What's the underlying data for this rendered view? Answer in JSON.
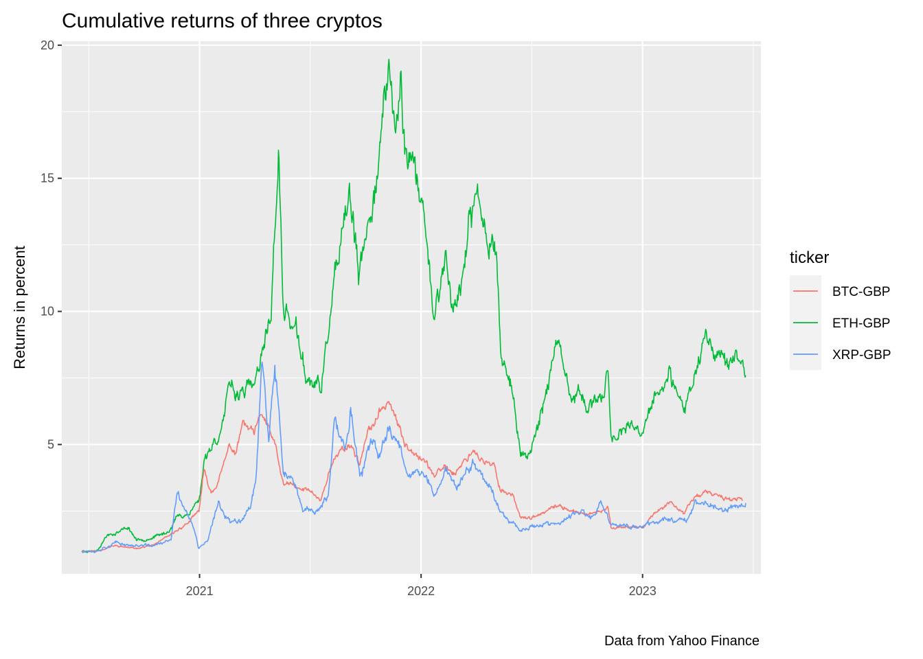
{
  "chart_data": {
    "type": "line",
    "title": "Cumulative returns of three cryptos",
    "xlabel": "",
    "ylabel": "Returns in percent",
    "caption": "Data from Yahoo Finance",
    "xlim": [
      "2020-05-19",
      "2023-07-15"
    ],
    "ylim": [
      0,
      20
    ],
    "x_ticks": [
      {
        "date": "2021-01-01",
        "label": "2021"
      },
      {
        "date": "2022-01-01",
        "label": "2022"
      },
      {
        "date": "2023-01-01",
        "label": "2023"
      }
    ],
    "y_ticks": [
      {
        "value": 5,
        "label": "5"
      },
      {
        "value": 10,
        "label": "10"
      },
      {
        "value": 15,
        "label": "15"
      },
      {
        "value": 20,
        "label": "20"
      }
    ],
    "grid": true,
    "legend": {
      "title": "ticker",
      "position": "right"
    },
    "series": [
      {
        "name": "BTC-GBP",
        "color": "#F8766D",
        "points": [
          [
            "2020-06-21",
            1.0
          ],
          [
            "2020-07-15",
            1.0
          ],
          [
            "2020-08-15",
            1.2
          ],
          [
            "2020-09-15",
            1.1
          ],
          [
            "2020-10-15",
            1.2
          ],
          [
            "2020-11-15",
            1.6
          ],
          [
            "2020-12-15",
            2.1
          ],
          [
            "2020-12-31",
            2.5
          ],
          [
            "2021-01-08",
            4.0
          ],
          [
            "2021-01-20",
            3.2
          ],
          [
            "2021-02-01",
            3.6
          ],
          [
            "2021-02-20",
            5.0
          ],
          [
            "2021-03-01",
            4.6
          ],
          [
            "2021-03-13",
            5.8
          ],
          [
            "2021-04-01",
            5.4
          ],
          [
            "2021-04-14",
            6.2
          ],
          [
            "2021-05-05",
            5.0
          ],
          [
            "2021-05-19",
            3.5
          ],
          [
            "2021-06-01",
            3.5
          ],
          [
            "2021-06-15",
            3.3
          ],
          [
            "2021-07-01",
            3.3
          ],
          [
            "2021-07-20",
            2.9
          ],
          [
            "2021-08-01",
            3.9
          ],
          [
            "2021-08-20",
            4.8
          ],
          [
            "2021-09-07",
            5.0
          ],
          [
            "2021-09-22",
            4.3
          ],
          [
            "2021-10-05",
            5.4
          ],
          [
            "2021-10-20",
            6.0
          ],
          [
            "2021-11-09",
            6.7
          ],
          [
            "2021-11-26",
            5.6
          ],
          [
            "2021-12-05",
            5.0
          ],
          [
            "2021-12-20",
            4.8
          ],
          [
            "2022-01-10",
            4.3
          ],
          [
            "2022-01-24",
            3.8
          ],
          [
            "2022-02-10",
            4.2
          ],
          [
            "2022-02-24",
            3.9
          ],
          [
            "2022-03-28",
            4.8
          ],
          [
            "2022-04-15",
            4.3
          ],
          [
            "2022-05-01",
            4.2
          ],
          [
            "2022-05-12",
            3.3
          ],
          [
            "2022-06-01",
            3.1
          ],
          [
            "2022-06-14",
            2.3
          ],
          [
            "2022-07-01",
            2.2
          ],
          [
            "2022-08-15",
            2.7
          ],
          [
            "2022-09-20",
            2.4
          ],
          [
            "2022-10-15",
            2.4
          ],
          [
            "2022-11-05",
            2.6
          ],
          [
            "2022-11-10",
            1.9
          ],
          [
            "2022-12-15",
            1.9
          ],
          [
            "2023-01-01",
            1.9
          ],
          [
            "2023-01-20",
            2.4
          ],
          [
            "2023-02-15",
            2.8
          ],
          [
            "2023-03-10",
            2.4
          ],
          [
            "2023-03-25",
            3.0
          ],
          [
            "2023-04-15",
            3.2
          ],
          [
            "2023-05-15",
            3.0
          ],
          [
            "2023-06-15",
            2.9
          ]
        ]
      },
      {
        "name": "ETH-GBP",
        "color": "#00BA38",
        "points": [
          [
            "2020-06-21",
            1.0
          ],
          [
            "2020-07-15",
            1.0
          ],
          [
            "2020-08-02",
            1.6
          ],
          [
            "2020-08-20",
            1.7
          ],
          [
            "2020-09-05",
            1.9
          ],
          [
            "2020-09-20",
            1.4
          ],
          [
            "2020-10-15",
            1.5
          ],
          [
            "2020-11-10",
            1.7
          ],
          [
            "2020-11-25",
            2.3
          ],
          [
            "2020-12-15",
            2.4
          ],
          [
            "2021-01-01",
            3.0
          ],
          [
            "2021-01-10",
            4.6
          ],
          [
            "2021-01-20",
            4.9
          ],
          [
            "2021-02-05",
            5.5
          ],
          [
            "2021-02-20",
            7.2
          ],
          [
            "2021-03-01",
            6.9
          ],
          [
            "2021-03-15",
            7.1
          ],
          [
            "2021-04-01",
            7.2
          ],
          [
            "2021-04-15",
            8.3
          ],
          [
            "2021-04-29",
            10.1
          ],
          [
            "2021-05-11",
            16.0
          ],
          [
            "2021-05-19",
            10.0
          ],
          [
            "2021-05-25",
            9.9
          ],
          [
            "2021-06-10",
            9.2
          ],
          [
            "2021-06-25",
            7.5
          ],
          [
            "2021-07-20",
            7.1
          ],
          [
            "2021-08-01",
            9.2
          ],
          [
            "2021-08-12",
            11.2
          ],
          [
            "2021-08-28",
            13.1
          ],
          [
            "2021-09-05",
            14.5
          ],
          [
            "2021-09-21",
            11.2
          ],
          [
            "2021-10-01",
            12.5
          ],
          [
            "2021-10-20",
            15.2
          ],
          [
            "2021-11-09",
            19.2
          ],
          [
            "2021-11-20",
            16.5
          ],
          [
            "2021-11-28",
            18.6
          ],
          [
            "2021-12-05",
            16.5
          ],
          [
            "2021-12-20",
            15.4
          ],
          [
            "2022-01-10",
            13.0
          ],
          [
            "2022-01-22",
            9.8
          ],
          [
            "2022-02-10",
            12.0
          ],
          [
            "2022-02-24",
            10.0
          ],
          [
            "2022-03-10",
            11.3
          ],
          [
            "2022-03-25",
            13.5
          ],
          [
            "2022-04-02",
            14.5
          ],
          [
            "2022-04-20",
            12.8
          ],
          [
            "2022-05-05",
            12.6
          ],
          [
            "2022-05-12",
            8.5
          ],
          [
            "2022-06-01",
            7.0
          ],
          [
            "2022-06-14",
            4.5
          ],
          [
            "2022-07-01",
            4.8
          ],
          [
            "2022-07-20",
            6.4
          ],
          [
            "2022-08-12",
            8.8
          ],
          [
            "2022-09-05",
            6.7
          ],
          [
            "2022-09-20",
            6.9
          ],
          [
            "2022-10-10",
            6.3
          ],
          [
            "2022-10-30",
            7.1
          ],
          [
            "2022-11-05",
            7.8
          ],
          [
            "2022-11-10",
            5.3
          ],
          [
            "2022-12-15",
            5.6
          ],
          [
            "2023-01-01",
            5.4
          ],
          [
            "2023-01-20",
            6.8
          ],
          [
            "2023-02-15",
            7.5
          ],
          [
            "2023-03-10",
            6.2
          ],
          [
            "2023-03-25",
            7.5
          ],
          [
            "2023-04-15",
            9.2
          ],
          [
            "2023-05-10",
            8.3
          ],
          [
            "2023-06-10",
            8.1
          ],
          [
            "2023-06-20",
            7.6
          ]
        ]
      },
      {
        "name": "XRP-GBP",
        "color": "#619CFF",
        "points": [
          [
            "2020-06-21",
            1.0
          ],
          [
            "2020-07-15",
            1.0
          ],
          [
            "2020-08-15",
            1.3
          ],
          [
            "2020-09-15",
            1.2
          ],
          [
            "2020-10-15",
            1.2
          ],
          [
            "2020-11-15",
            1.4
          ],
          [
            "2020-11-25",
            3.2
          ],
          [
            "2020-12-10",
            2.5
          ],
          [
            "2020-12-23",
            1.8
          ],
          [
            "2020-12-30",
            1.1
          ],
          [
            "2021-01-15",
            1.4
          ],
          [
            "2021-02-01",
            2.8
          ],
          [
            "2021-02-20",
            2.1
          ],
          [
            "2021-03-10",
            2.2
          ],
          [
            "2021-03-25",
            2.6
          ],
          [
            "2021-04-05",
            4.0
          ],
          [
            "2021-04-14",
            8.5
          ],
          [
            "2021-04-25",
            5.0
          ],
          [
            "2021-05-05",
            7.9
          ],
          [
            "2021-05-19",
            4.0
          ],
          [
            "2021-06-01",
            3.7
          ],
          [
            "2021-06-20",
            2.6
          ],
          [
            "2021-07-15",
            2.5
          ],
          [
            "2021-08-01",
            3.0
          ],
          [
            "2021-08-12",
            5.9
          ],
          [
            "2021-08-28",
            4.8
          ],
          [
            "2021-09-07",
            6.4
          ],
          [
            "2021-09-22",
            3.7
          ],
          [
            "2021-10-10",
            5.0
          ],
          [
            "2021-10-25",
            4.6
          ],
          [
            "2021-11-10",
            5.7
          ],
          [
            "2021-11-26",
            5.0
          ],
          [
            "2021-12-10",
            4.0
          ],
          [
            "2022-01-10",
            3.8
          ],
          [
            "2022-01-24",
            3.0
          ],
          [
            "2022-02-10",
            4.1
          ],
          [
            "2022-03-01",
            3.4
          ],
          [
            "2022-03-28",
            4.3
          ],
          [
            "2022-04-20",
            3.6
          ],
          [
            "2022-05-12",
            2.5
          ],
          [
            "2022-06-14",
            1.8
          ],
          [
            "2022-07-15",
            2.0
          ],
          [
            "2022-08-15",
            2.0
          ],
          [
            "2022-09-20",
            2.5
          ],
          [
            "2022-10-10",
            2.2
          ],
          [
            "2022-10-25",
            2.8
          ],
          [
            "2022-11-10",
            2.0
          ],
          [
            "2022-12-15",
            1.9
          ],
          [
            "2023-01-01",
            1.9
          ],
          [
            "2023-01-20",
            2.1
          ],
          [
            "2023-02-15",
            2.2
          ],
          [
            "2023-03-15",
            2.2
          ],
          [
            "2023-03-28",
            2.8
          ],
          [
            "2023-04-15",
            2.8
          ],
          [
            "2023-05-15",
            2.5
          ],
          [
            "2023-06-20",
            2.8
          ]
        ]
      }
    ]
  }
}
